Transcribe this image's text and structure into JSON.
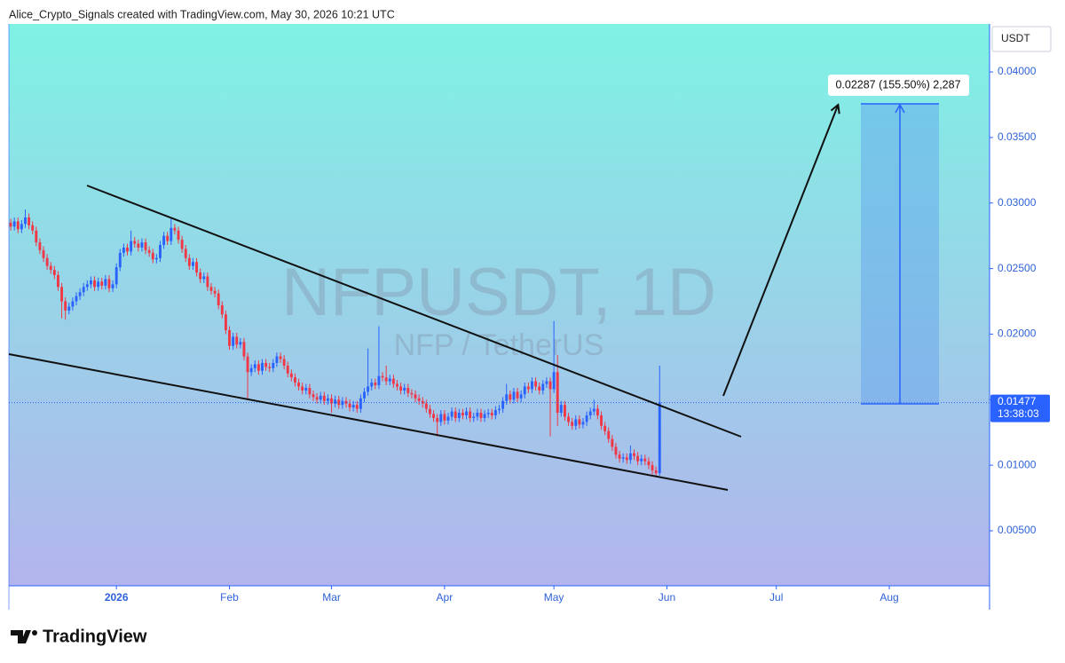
{
  "chart_data": {
    "type": "candlestick",
    "title": "Alice_Crypto_Signals created with TradingView.com, May 30, 2026 10:21 UTC",
    "symbol": "NFPUSDT, 1D",
    "symbol_name": "NFP / TetherUS",
    "y_label": "USDT",
    "countdown": "13:38:03",
    "measure_label": "0.02287 (155.50%) 2,287",
    "brand": "TradingView",
    "up_color": "#2962ff",
    "down_color": "#f23645",
    "grid": false,
    "ylim": [
      0.0008,
      0.04366
    ],
    "yticks": [
      {
        "value": 0.005,
        "label": "0.00500"
      },
      {
        "value": 0.01,
        "label": "0.01000"
      },
      {
        "value": 0.015,
        "label": "0.01500"
      },
      {
        "value": 0.02,
        "label": "0.02000"
      },
      {
        "value": 0.025,
        "label": "0.02500"
      },
      {
        "value": 0.03,
        "label": "0.03000"
      },
      {
        "value": 0.035,
        "label": "0.03500"
      },
      {
        "value": 0.04,
        "label": "0.04000"
      }
    ],
    "xlim": [
      -0.5,
      268.5
    ],
    "xticks": [
      {
        "value": 29,
        "label": "2026"
      },
      {
        "value": 60,
        "label": "Feb"
      },
      {
        "value": 88,
        "label": "Mar"
      },
      {
        "value": 119,
        "label": "Apr"
      },
      {
        "value": 149,
        "label": "May"
      },
      {
        "value": 180,
        "label": "Jun"
      },
      {
        "value": 210,
        "label": "Jul"
      },
      {
        "value": 241,
        "label": "Aug"
      }
    ],
    "candles": [
      [
        0.0285,
        0.0288,
        0.0279,
        0.0282
      ],
      [
        0.0282,
        0.0289,
        0.0279,
        0.0286
      ],
      [
        0.0286,
        0.0289,
        0.0277,
        0.028
      ],
      [
        0.028,
        0.0287,
        0.0277,
        0.0284
      ],
      [
        0.0284,
        0.0295,
        0.0281,
        0.0289
      ],
      [
        0.0289,
        0.0292,
        0.028,
        0.0283
      ],
      [
        0.0283,
        0.0286,
        0.0276,
        0.0279
      ],
      [
        0.0279,
        0.0282,
        0.0267,
        0.027
      ],
      [
        0.027,
        0.0273,
        0.0261,
        0.0264
      ],
      [
        0.0264,
        0.0267,
        0.0255,
        0.0258
      ],
      [
        0.0258,
        0.0261,
        0.0249,
        0.0252
      ],
      [
        0.0252,
        0.0255,
        0.0246,
        0.0249
      ],
      [
        0.0249,
        0.0252,
        0.0242,
        0.0245
      ],
      [
        0.0245,
        0.0248,
        0.0233,
        0.0236
      ],
      [
        0.0236,
        0.0239,
        0.0212,
        0.0225
      ],
      [
        0.0225,
        0.0228,
        0.0211,
        0.0218
      ],
      [
        0.0218,
        0.0224,
        0.0215,
        0.0221
      ],
      [
        0.0221,
        0.0228,
        0.0218,
        0.0225
      ],
      [
        0.0225,
        0.0232,
        0.0222,
        0.0229
      ],
      [
        0.0229,
        0.0235,
        0.0226,
        0.0232
      ],
      [
        0.0232,
        0.0239,
        0.0229,
        0.0236
      ],
      [
        0.0236,
        0.0241,
        0.0233,
        0.0238
      ],
      [
        0.0238,
        0.0244,
        0.0235,
        0.0241
      ],
      [
        0.0241,
        0.0244,
        0.0233,
        0.0236
      ],
      [
        0.0236,
        0.0243,
        0.0233,
        0.024
      ],
      [
        0.024,
        0.0243,
        0.0234,
        0.0237
      ],
      [
        0.0237,
        0.0245,
        0.0234,
        0.0242
      ],
      [
        0.0242,
        0.0245,
        0.0232,
        0.0235
      ],
      [
        0.0235,
        0.0241,
        0.0232,
        0.0238
      ],
      [
        0.0238,
        0.0254,
        0.0235,
        0.0251
      ],
      [
        0.0251,
        0.0265,
        0.0248,
        0.0262
      ],
      [
        0.0262,
        0.0269,
        0.0259,
        0.0266
      ],
      [
        0.0266,
        0.0269,
        0.026,
        0.0263
      ],
      [
        0.0263,
        0.0279,
        0.026,
        0.0271
      ],
      [
        0.0271,
        0.0274,
        0.0266,
        0.0269
      ],
      [
        0.0269,
        0.0272,
        0.0263,
        0.0266
      ],
      [
        0.0266,
        0.0273,
        0.0263,
        0.027
      ],
      [
        0.027,
        0.0273,
        0.0261,
        0.0264
      ],
      [
        0.0264,
        0.0267,
        0.0259,
        0.0262
      ],
      [
        0.0262,
        0.0265,
        0.0254,
        0.0257
      ],
      [
        0.0257,
        0.0261,
        0.0254,
        0.0258
      ],
      [
        0.0258,
        0.0271,
        0.0255,
        0.0268
      ],
      [
        0.0268,
        0.0278,
        0.0265,
        0.0275
      ],
      [
        0.0275,
        0.0278,
        0.0268,
        0.0271
      ],
      [
        0.0271,
        0.0288,
        0.0268,
        0.0281
      ],
      [
        0.0281,
        0.0284,
        0.0276,
        0.0279
      ],
      [
        0.0279,
        0.0282,
        0.0269,
        0.0272
      ],
      [
        0.0272,
        0.0275,
        0.0262,
        0.0265
      ],
      [
        0.0265,
        0.0268,
        0.0255,
        0.0258
      ],
      [
        0.0258,
        0.0261,
        0.0249,
        0.0252
      ],
      [
        0.0252,
        0.0258,
        0.0249,
        0.0255
      ],
      [
        0.0255,
        0.0258,
        0.0244,
        0.0247
      ],
      [
        0.0247,
        0.025,
        0.0239,
        0.0242
      ],
      [
        0.0242,
        0.0247,
        0.0239,
        0.0244
      ],
      [
        0.0244,
        0.0247,
        0.0233,
        0.0236
      ],
      [
        0.0236,
        0.0239,
        0.023,
        0.0233
      ],
      [
        0.0233,
        0.0236,
        0.0228,
        0.0231
      ],
      [
        0.0231,
        0.0234,
        0.0219,
        0.0222
      ],
      [
        0.0222,
        0.0225,
        0.0212,
        0.0215
      ],
      [
        0.0215,
        0.0218,
        0.02,
        0.0203
      ],
      [
        0.0203,
        0.0206,
        0.0188,
        0.0191
      ],
      [
        0.0191,
        0.0201,
        0.0188,
        0.0198
      ],
      [
        0.0198,
        0.0201,
        0.0189,
        0.0192
      ],
      [
        0.0192,
        0.0197,
        0.0189,
        0.0194
      ],
      [
        0.0194,
        0.0197,
        0.018,
        0.0183
      ],
      [
        0.0183,
        0.0186,
        0.0151,
        0.0171
      ],
      [
        0.0171,
        0.0177,
        0.0168,
        0.0174
      ],
      [
        0.0174,
        0.018,
        0.0171,
        0.0177
      ],
      [
        0.0177,
        0.018,
        0.0169,
        0.0172
      ],
      [
        0.0172,
        0.0181,
        0.0169,
        0.0178
      ],
      [
        0.0178,
        0.0181,
        0.0172,
        0.0175
      ],
      [
        0.0175,
        0.0178,
        0.0171,
        0.0174
      ],
      [
        0.0174,
        0.0181,
        0.0171,
        0.0178
      ],
      [
        0.0178,
        0.0186,
        0.0175,
        0.0183
      ],
      [
        0.0183,
        0.0186,
        0.0178,
        0.0181
      ],
      [
        0.0181,
        0.0184,
        0.0173,
        0.0176
      ],
      [
        0.0176,
        0.0179,
        0.0167,
        0.017
      ],
      [
        0.017,
        0.0173,
        0.0164,
        0.0167
      ],
      [
        0.0167,
        0.017,
        0.016,
        0.0163
      ],
      [
        0.0163,
        0.0166,
        0.0157,
        0.016
      ],
      [
        0.016,
        0.0163,
        0.0154,
        0.0157
      ],
      [
        0.0157,
        0.0162,
        0.0154,
        0.0159
      ],
      [
        0.0159,
        0.0162,
        0.0151,
        0.0154
      ],
      [
        0.0154,
        0.0157,
        0.0149,
        0.0152
      ],
      [
        0.0152,
        0.0155,
        0.0147,
        0.015
      ],
      [
        0.015,
        0.0156,
        0.0147,
        0.0153
      ],
      [
        0.0153,
        0.0156,
        0.0146,
        0.0149
      ],
      [
        0.0149,
        0.0154,
        0.0146,
        0.0151
      ],
      [
        0.0151,
        0.0154,
        0.014,
        0.0147
      ],
      [
        0.0147,
        0.0153,
        0.0144,
        0.015
      ],
      [
        0.015,
        0.0153,
        0.0143,
        0.0146
      ],
      [
        0.0146,
        0.0152,
        0.0143,
        0.0149
      ],
      [
        0.0149,
        0.0152,
        0.0144,
        0.0147
      ],
      [
        0.0147,
        0.015,
        0.0141,
        0.0144
      ],
      [
        0.0144,
        0.0149,
        0.0141,
        0.0146
      ],
      [
        0.0146,
        0.0149,
        0.014,
        0.0143
      ],
      [
        0.0143,
        0.0154,
        0.014,
        0.0151
      ],
      [
        0.0151,
        0.0159,
        0.0148,
        0.0156
      ],
      [
        0.0156,
        0.0189,
        0.0153,
        0.016
      ],
      [
        0.016,
        0.0166,
        0.0157,
        0.0163
      ],
      [
        0.0163,
        0.0166,
        0.0158,
        0.0161
      ],
      [
        0.0161,
        0.0206,
        0.0158,
        0.0168
      ],
      [
        0.0168,
        0.0171,
        0.0164,
        0.0167
      ],
      [
        0.0167,
        0.0176,
        0.0161,
        0.0164
      ],
      [
        0.0164,
        0.0169,
        0.0161,
        0.0166
      ],
      [
        0.0166,
        0.0169,
        0.0159,
        0.0162
      ],
      [
        0.0162,
        0.0165,
        0.0157,
        0.016
      ],
      [
        0.016,
        0.0163,
        0.0154,
        0.0157
      ],
      [
        0.0157,
        0.0162,
        0.0154,
        0.0159
      ],
      [
        0.0159,
        0.0162,
        0.0152,
        0.0155
      ],
      [
        0.0155,
        0.0158,
        0.0151,
        0.0154
      ],
      [
        0.0154,
        0.0157,
        0.0148,
        0.0151
      ],
      [
        0.0151,
        0.0154,
        0.0146,
        0.0149
      ],
      [
        0.0149,
        0.0152,
        0.0144,
        0.0147
      ],
      [
        0.0147,
        0.015,
        0.014,
        0.0143
      ],
      [
        0.0143,
        0.0146,
        0.0136,
        0.0139
      ],
      [
        0.0139,
        0.0142,
        0.0133,
        0.0136
      ],
      [
        0.0136,
        0.0139,
        0.0122,
        0.0133
      ],
      [
        0.0133,
        0.0142,
        0.013,
        0.0139
      ],
      [
        0.0139,
        0.0142,
        0.0131,
        0.0134
      ],
      [
        0.0134,
        0.014,
        0.0131,
        0.0137
      ],
      [
        0.0137,
        0.0144,
        0.0134,
        0.0141
      ],
      [
        0.0141,
        0.0144,
        0.0133,
        0.0136
      ],
      [
        0.0136,
        0.0143,
        0.0133,
        0.014
      ],
      [
        0.014,
        0.0143,
        0.0135,
        0.0138
      ],
      [
        0.0138,
        0.0144,
        0.0135,
        0.0141
      ],
      [
        0.0141,
        0.0144,
        0.0133,
        0.0136
      ],
      [
        0.0136,
        0.014,
        0.0133,
        0.0137
      ],
      [
        0.0137,
        0.0143,
        0.0134,
        0.014
      ],
      [
        0.014,
        0.0143,
        0.0133,
        0.0136
      ],
      [
        0.0136,
        0.0142,
        0.0133,
        0.0139
      ],
      [
        0.0139,
        0.0143,
        0.0136,
        0.014
      ],
      [
        0.014,
        0.0143,
        0.0135,
        0.0138
      ],
      [
        0.0138,
        0.0145,
        0.0135,
        0.0142
      ],
      [
        0.0142,
        0.0146,
        0.0139,
        0.0143
      ],
      [
        0.0143,
        0.0152,
        0.014,
        0.0149
      ],
      [
        0.0149,
        0.0162,
        0.0146,
        0.0154
      ],
      [
        0.0154,
        0.0157,
        0.0147,
        0.015
      ],
      [
        0.015,
        0.0159,
        0.0147,
        0.0156
      ],
      [
        0.0156,
        0.0159,
        0.0148,
        0.0151
      ],
      [
        0.0151,
        0.0157,
        0.0148,
        0.0154
      ],
      [
        0.0154,
        0.0163,
        0.0151,
        0.016
      ],
      [
        0.016,
        0.0163,
        0.0155,
        0.0158
      ],
      [
        0.0158,
        0.0167,
        0.0155,
        0.0164
      ],
      [
        0.0164,
        0.0167,
        0.0157,
        0.016
      ],
      [
        0.016,
        0.0163,
        0.0154,
        0.0157
      ],
      [
        0.0157,
        0.0165,
        0.0154,
        0.0162
      ],
      [
        0.0162,
        0.0167,
        0.0159,
        0.0164
      ],
      [
        0.0164,
        0.0167,
        0.0122,
        0.0158
      ],
      [
        0.0158,
        0.021,
        0.0155,
        0.0171
      ],
      [
        0.0171,
        0.0184,
        0.013,
        0.014
      ],
      [
        0.014,
        0.0149,
        0.0137,
        0.0146
      ],
      [
        0.0146,
        0.0149,
        0.0134,
        0.0137
      ],
      [
        0.0137,
        0.014,
        0.013,
        0.0133
      ],
      [
        0.0133,
        0.0136,
        0.0127,
        0.013
      ],
      [
        0.013,
        0.0138,
        0.0127,
        0.0135
      ],
      [
        0.0135,
        0.0138,
        0.0128,
        0.0131
      ],
      [
        0.0131,
        0.0136,
        0.0128,
        0.0133
      ],
      [
        0.0133,
        0.0141,
        0.013,
        0.0138
      ],
      [
        0.0138,
        0.0144,
        0.0135,
        0.0141
      ],
      [
        0.0141,
        0.015,
        0.0138,
        0.0143
      ],
      [
        0.0143,
        0.0146,
        0.0135,
        0.0138
      ],
      [
        0.0138,
        0.0141,
        0.0127,
        0.013
      ],
      [
        0.013,
        0.0133,
        0.0123,
        0.0126
      ],
      [
        0.0126,
        0.0129,
        0.0117,
        0.012
      ],
      [
        0.012,
        0.0123,
        0.0111,
        0.0114
      ],
      [
        0.0114,
        0.0117,
        0.0105,
        0.0108
      ],
      [
        0.0108,
        0.0111,
        0.0102,
        0.0105
      ],
      [
        0.0105,
        0.0109,
        0.0102,
        0.0106
      ],
      [
        0.0106,
        0.0109,
        0.0101,
        0.0104
      ],
      [
        0.0104,
        0.0115,
        0.0101,
        0.0109
      ],
      [
        0.0109,
        0.0112,
        0.0104,
        0.0107
      ],
      [
        0.0107,
        0.011,
        0.01,
        0.0103
      ],
      [
        0.0103,
        0.0108,
        0.01,
        0.0105
      ],
      [
        0.0105,
        0.0108,
        0.01,
        0.0103
      ],
      [
        0.0103,
        0.0106,
        0.0097,
        0.01
      ],
      [
        0.01,
        0.0103,
        0.0093,
        0.0096
      ],
      [
        0.0096,
        0.0099,
        0.0091,
        0.0094
      ],
      [
        0.0094,
        0.0176,
        0.0092,
        0.01477
      ]
    ]
  }
}
